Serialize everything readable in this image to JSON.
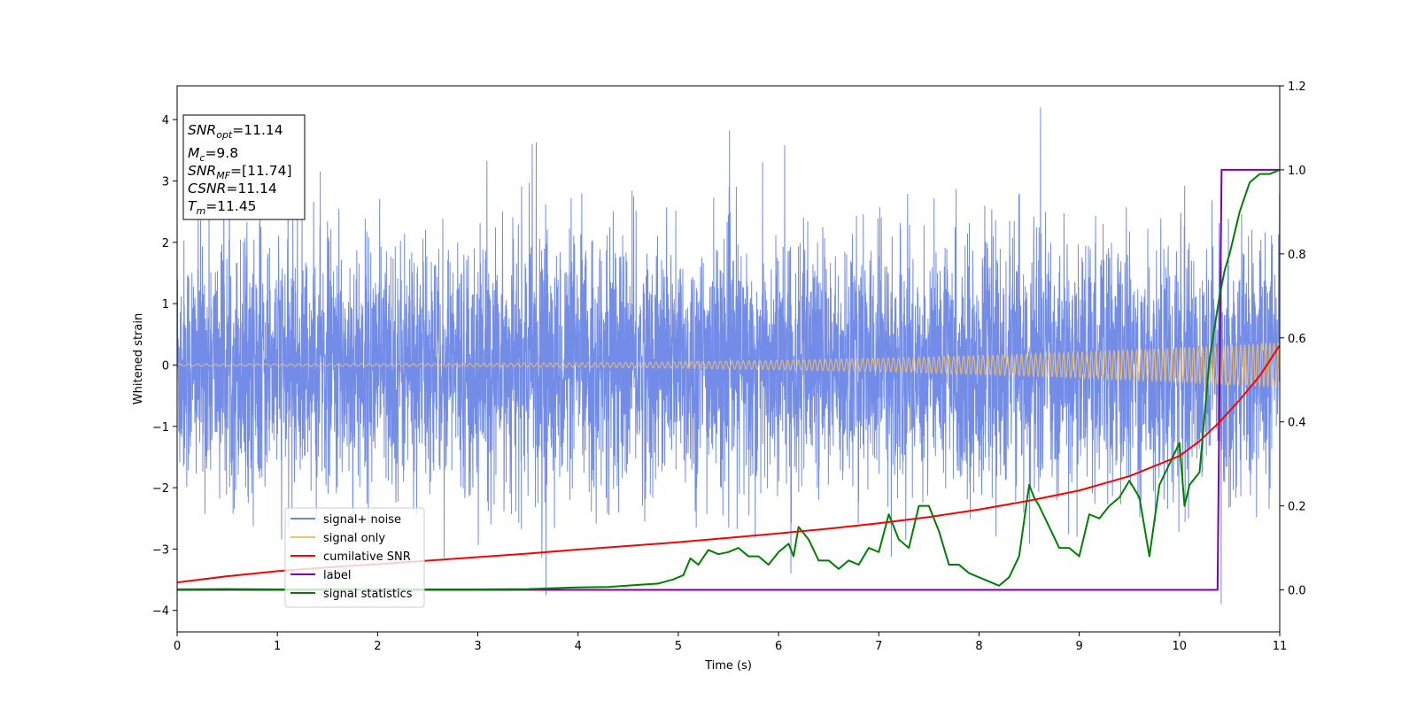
{
  "chart_data": {
    "type": "line",
    "xlabel": "Time (s)",
    "ylabel": "Whitened strain",
    "xlim": [
      0,
      11
    ],
    "ylim": [
      -4.35,
      4.55
    ],
    "ylim_right": [
      -0.1,
      1.2
    ],
    "x_ticks": [
      "0",
      "1",
      "2",
      "3",
      "4",
      "5",
      "6",
      "7",
      "8",
      "9",
      "10",
      "11"
    ],
    "y_ticks": [
      "−4",
      "−3",
      "−2",
      "−1",
      "0",
      "1",
      "2",
      "3",
      "4"
    ],
    "y_ticks_right": [
      "0.0",
      "0.2",
      "0.4",
      "0.6",
      "0.8",
      "1.0",
      "1.2"
    ],
    "grid": false,
    "legend_position": "lower-left",
    "series": [
      {
        "name": "signal+ noise",
        "color": "#6a86e6",
        "axis": "left",
        "description": "whitened noise, std ~1.0, peaks up to ~4.2",
        "std": 1.0,
        "peak_max": 4.2,
        "peak_min": -3.9
      },
      {
        "name": "signal only",
        "color": "#f5c16c",
        "axis": "left",
        "description": "chirp, amplitude grows from ~0.02 to ~0.37",
        "amp_start": 0.02,
        "amp_end": 0.37
      },
      {
        "name": "cumilative SNR",
        "color": "#ff0000",
        "axis": "right",
        "x": [
          0,
          0.5,
          1,
          1.5,
          2,
          2.5,
          3,
          3.5,
          4,
          4.5,
          5,
          5.5,
          6,
          6.5,
          7,
          7.5,
          8,
          8.5,
          9,
          9.5,
          10,
          10.2,
          10.4,
          10.6,
          10.8,
          11
        ],
        "y": [
          0.0177,
          0.0325,
          0.0445,
          0.0535,
          0.0613,
          0.0696,
          0.078,
          0.0865,
          0.096,
          0.1047,
          0.1135,
          0.1238,
          0.1345,
          0.1456,
          0.1587,
          0.1733,
          0.1912,
          0.2124,
          0.2366,
          0.2707,
          0.3188,
          0.3542,
          0.3995,
          0.4523,
          0.5094,
          0.5823
        ]
      },
      {
        "name": "label",
        "color": "#7f00a0",
        "axis": "right",
        "x": [
          0,
          10.38,
          10.42,
          11
        ],
        "y": [
          0,
          0,
          1,
          1
        ]
      },
      {
        "name": "signal statistics",
        "color": "#008000",
        "axis": "right",
        "x": [
          0,
          0.5,
          1,
          1.5,
          2,
          2.5,
          3,
          3.5,
          4,
          4.3,
          4.6,
          4.8,
          4.95,
          5.05,
          5.12,
          5.2,
          5.3,
          5.4,
          5.5,
          5.6,
          5.7,
          5.8,
          5.9,
          6.0,
          6.1,
          6.15,
          6.2,
          6.3,
          6.4,
          6.5,
          6.6,
          6.7,
          6.8,
          6.9,
          7.0,
          7.1,
          7.2,
          7.3,
          7.4,
          7.5,
          7.6,
          7.7,
          7.8,
          7.9,
          8.0,
          8.1,
          8.2,
          8.3,
          8.4,
          8.5,
          8.55,
          8.6,
          8.7,
          8.8,
          8.9,
          9.0,
          9.1,
          9.2,
          9.3,
          9.4,
          9.5,
          9.6,
          9.7,
          9.8,
          9.9,
          10.0,
          10.05,
          10.1,
          10.2,
          10.3,
          10.4,
          10.45,
          10.5,
          10.55,
          10.6,
          10.7,
          10.8,
          10.9,
          11.0
        ],
        "y": [
          0.001,
          0.002,
          0.001,
          0.001,
          0.001,
          0.001,
          0.001,
          0.002,
          0.006,
          0.007,
          0.012,
          0.015,
          0.025,
          0.035,
          0.075,
          0.06,
          0.095,
          0.085,
          0.09,
          0.1,
          0.08,
          0.08,
          0.06,
          0.09,
          0.11,
          0.08,
          0.15,
          0.12,
          0.07,
          0.07,
          0.05,
          0.07,
          0.06,
          0.1,
          0.09,
          0.18,
          0.12,
          0.1,
          0.2,
          0.2,
          0.14,
          0.06,
          0.06,
          0.04,
          0.03,
          0.02,
          0.01,
          0.03,
          0.08,
          0.25,
          0.22,
          0.2,
          0.15,
          0.1,
          0.1,
          0.08,
          0.18,
          0.17,
          0.2,
          0.22,
          0.26,
          0.22,
          0.08,
          0.25,
          0.3,
          0.35,
          0.2,
          0.25,
          0.28,
          0.55,
          0.7,
          0.76,
          0.8,
          0.85,
          0.9,
          0.97,
          0.99,
          0.99,
          1.0
        ]
      }
    ],
    "annotation": {
      "lines": [
        {
          "var": "SNR",
          "sub": "opt",
          "val": "=11.14"
        },
        {
          "var": "M",
          "sub": "c",
          "val": "=9.8"
        },
        {
          "var": "SNR",
          "sub": "MF",
          "val": "=[11.74]"
        },
        {
          "var": "CSNR",
          "sub": "",
          "val": "=11.14"
        },
        {
          "var": "T",
          "sub": "m",
          "val": "=11.45"
        }
      ]
    }
  }
}
